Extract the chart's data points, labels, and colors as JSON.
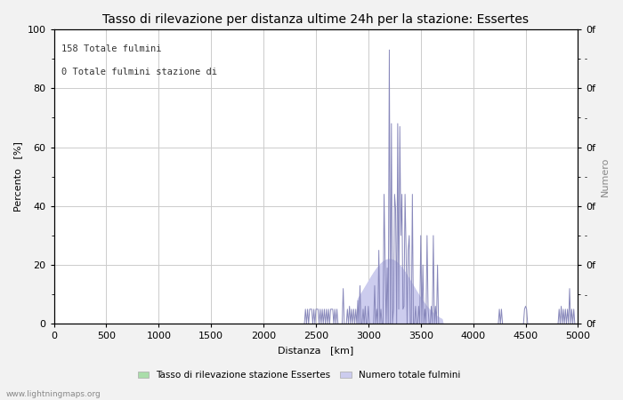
{
  "title": "Tasso di rilevazione per distanza ultime 24h per la stazione: Essertes",
  "xlabel": "Distanza   [km]",
  "ylabel_left": "Percento   [%]",
  "ylabel_right": "Numero",
  "annotation_line1": "158 Totale fulmini",
  "annotation_line2": "0 Totale fulmini stazione di",
  "legend_label1": "Tasso di rilevazione stazione Essertes",
  "legend_label2": "Numero totale fulmini",
  "watermark": "www.lightningmaps.org",
  "xlim": [
    0,
    5000
  ],
  "ylim": [
    0,
    100
  ],
  "right_ylim": [
    0,
    100
  ],
  "xticks": [
    0,
    500,
    1000,
    1500,
    2000,
    2500,
    3000,
    3500,
    4000,
    4500,
    5000
  ],
  "yticks_left": [
    0,
    20,
    40,
    60,
    80,
    100
  ],
  "bg_color": "#f2f2f2",
  "plot_bg_color": "#ffffff",
  "line_color": "#8888bb",
  "fill_color_blue": "#ccccee",
  "fill_color_green": "#aaddaa",
  "grid_color": "#cccccc",
  "title_fontsize": 10,
  "label_fontsize": 8,
  "tick_fontsize": 8,
  "right_tick_labels": [
    "0f",
    "0f",
    "0f",
    "0f",
    "0f",
    "0f",
    "0f",
    "0f",
    "0f",
    "0f",
    "0f"
  ]
}
